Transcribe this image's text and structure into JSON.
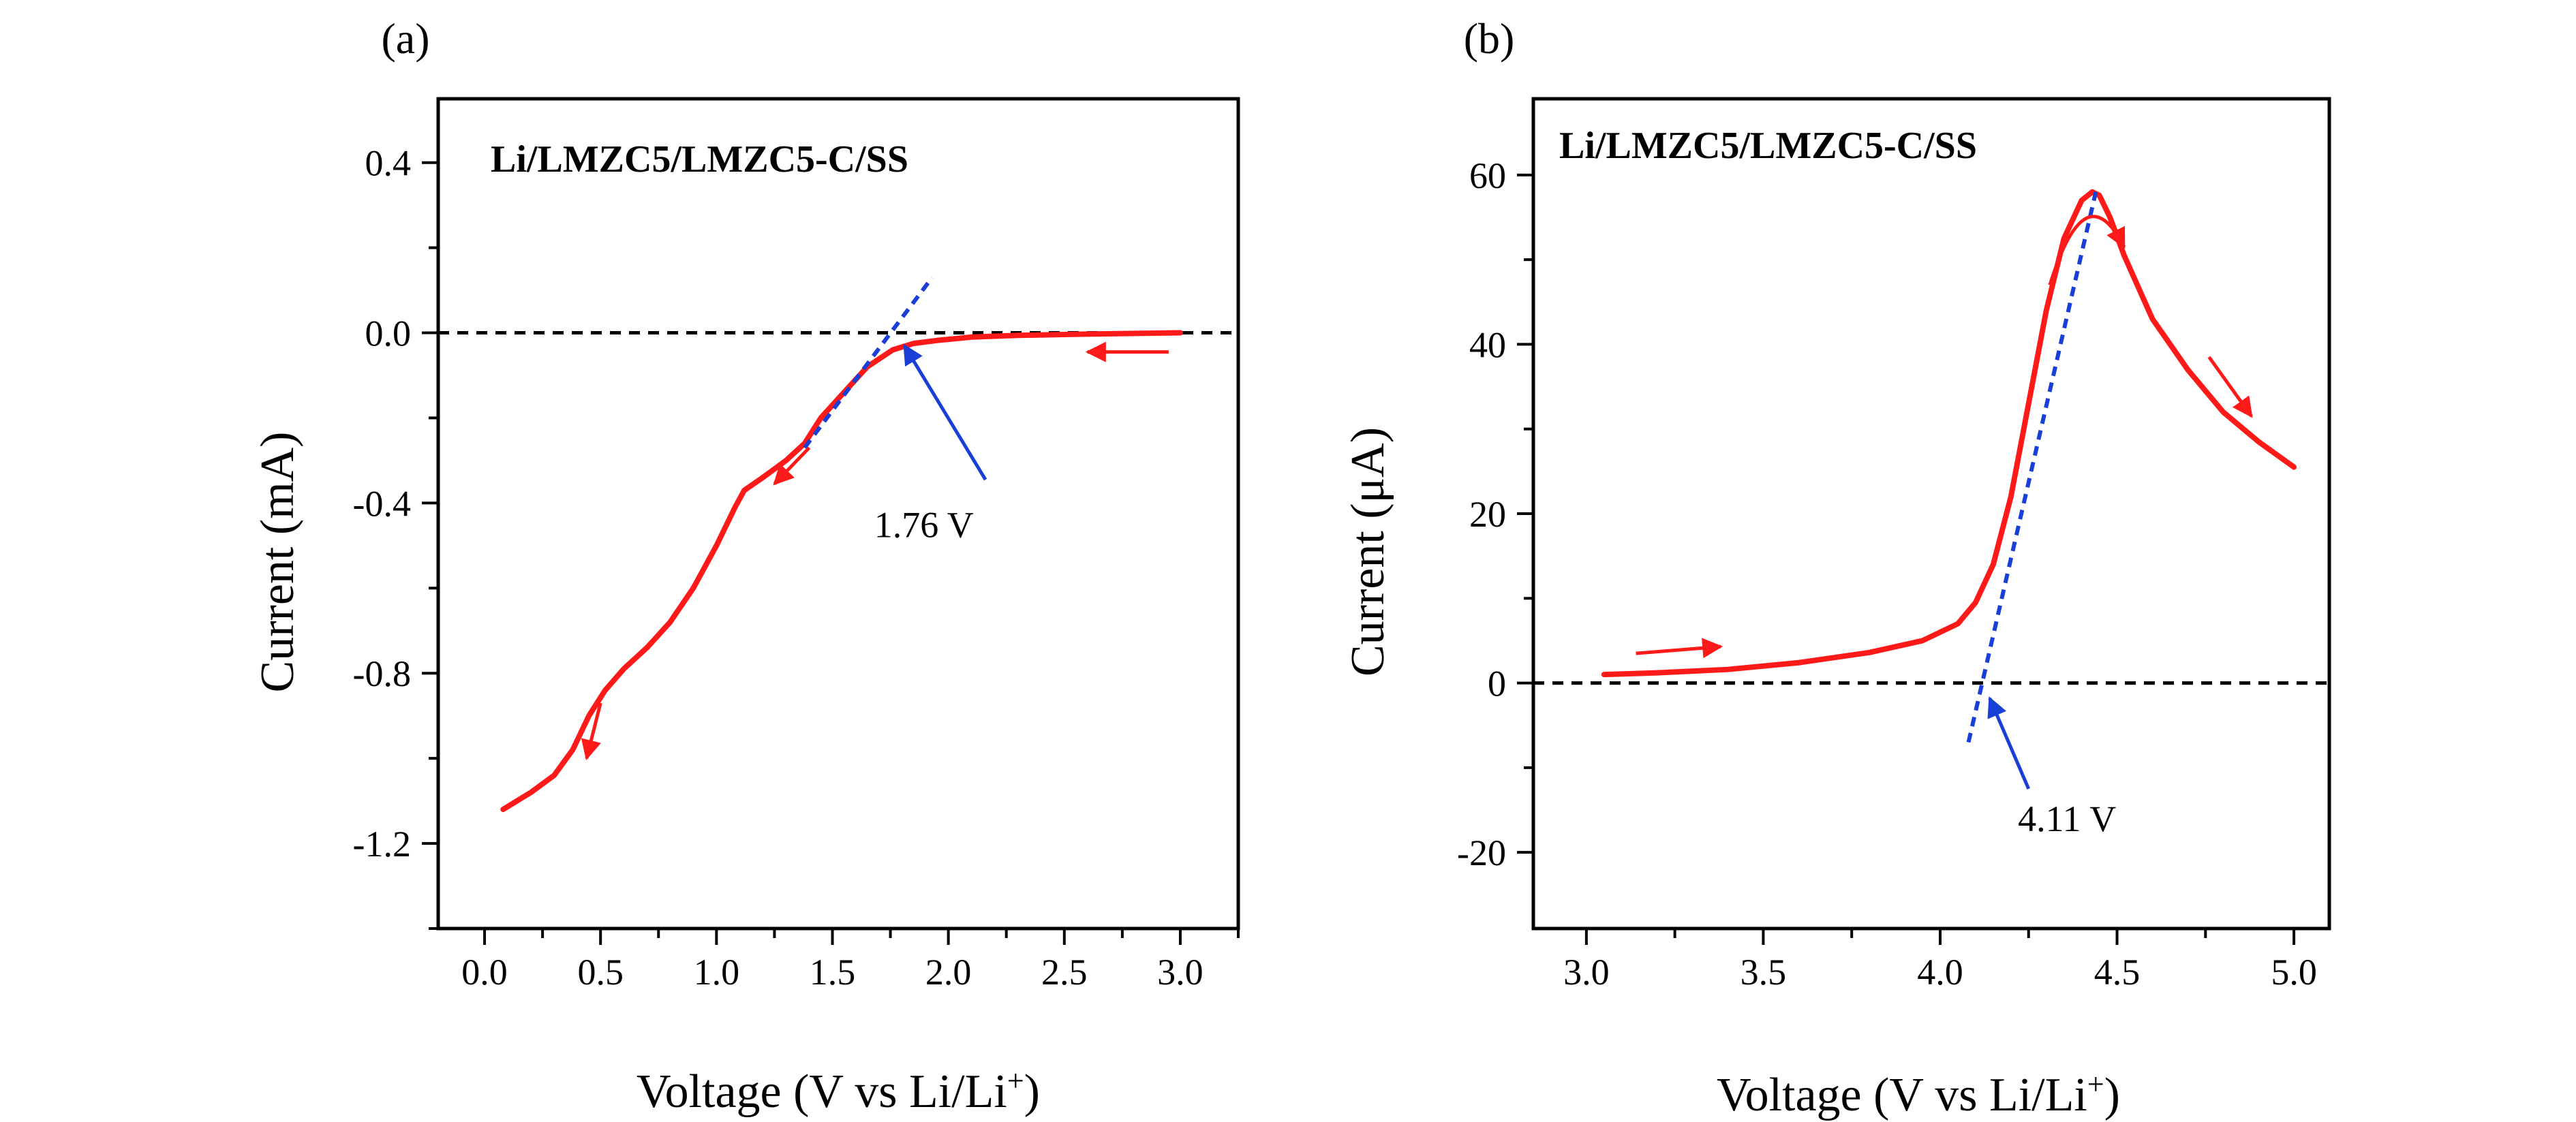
{
  "chart_data": [
    {
      "panel": "(a)",
      "type": "line",
      "title": "Li/LMZC5/LMZC5-C/SS",
      "xlabel": "Voltage (V vs Li/Li",
      "xlabel_sup": "+",
      "xlabel_end": ")",
      "ylabel": "Current (mA)",
      "xlim": [
        -0.2,
        3.25
      ],
      "ylim": [
        -1.4,
        0.55
      ],
      "xticks": [
        0.0,
        0.5,
        1.0,
        1.5,
        2.0,
        2.5,
        3.0
      ],
      "xtick_labels": [
        "0.0",
        "0.5",
        "1.0",
        "1.5",
        "2.0",
        "2.5",
        "3.0"
      ],
      "yticks": [
        0.4,
        0.0,
        -0.4,
        -0.8,
        -1.2
      ],
      "ytick_labels": [
        "0.4",
        "0.0",
        "-0.4",
        "-0.8",
        "-1.2"
      ],
      "series": [
        {
          "color": "#ff1a1a",
          "style": "solid",
          "x": [
            0.08,
            0.2,
            0.3,
            0.38,
            0.45,
            0.52,
            0.6,
            0.7,
            0.8,
            0.9,
            1.0,
            1.08,
            1.12,
            1.2,
            1.3,
            1.38,
            1.45,
            1.55,
            1.65,
            1.76,
            1.85,
            1.95,
            2.1,
            2.3,
            2.6,
            3.0
          ],
          "y": [
            -1.12,
            -1.08,
            -1.04,
            -0.98,
            -0.9,
            -0.84,
            -0.79,
            -0.74,
            -0.68,
            -0.6,
            -0.5,
            -0.41,
            -0.37,
            -0.34,
            -0.3,
            -0.26,
            -0.2,
            -0.14,
            -0.08,
            -0.04,
            -0.025,
            -0.018,
            -0.01,
            -0.006,
            -0.003,
            0.0
          ]
        }
      ],
      "baseline": {
        "y": 0.0,
        "x_range": [
          -0.2,
          3.25
        ],
        "color": "#000000",
        "style": "dashed"
      },
      "tangent": {
        "x": [
          1.38,
          1.93
        ],
        "y": [
          -0.27,
          0.13
        ],
        "color": "#1a3fd6",
        "style": "dashed"
      },
      "arrows": [
        {
          "from": [
            2.95,
            -0.045
          ],
          "to": [
            2.6,
            -0.045
          ],
          "color": "#ff1a1a"
        },
        {
          "from": [
            1.4,
            -0.27
          ],
          "to": [
            1.25,
            -0.355
          ],
          "color": "#ff1a1a"
        },
        {
          "from": [
            0.5,
            -0.87
          ],
          "to": [
            0.44,
            -1.0
          ],
          "color": "#ff1a1a"
        }
      ],
      "annotation": {
        "text": "1.76 V",
        "text_at": [
          1.68,
          -0.48
        ],
        "arrow_from": [
          2.16,
          -0.345
        ],
        "arrow_to": [
          1.81,
          -0.03
        ],
        "color": "#1a3fd6"
      }
    },
    {
      "panel": "(b)",
      "type": "line",
      "title": "Li/LMZC5/LMZC5-C/SS",
      "xlabel": "Voltage (V vs Li/Li",
      "xlabel_sup": "+",
      "xlabel_end": ")",
      "ylabel": "Current (μA)",
      "xlim": [
        2.85,
        5.1
      ],
      "ylim": [
        -29,
        69
      ],
      "xticks": [
        3.0,
        3.5,
        4.0,
        4.5,
        5.0
      ],
      "xtick_labels": [
        "3.0",
        "3.5",
        "4.0",
        "4.5",
        "5.0"
      ],
      "yticks": [
        60,
        40,
        20,
        0,
        -20
      ],
      "ytick_labels": [
        "60",
        "40",
        "20",
        "0",
        "-20"
      ],
      "series": [
        {
          "color": "#ff1a1a",
          "style": "solid",
          "x": [
            3.05,
            3.2,
            3.4,
            3.6,
            3.8,
            3.95,
            4.05,
            4.1,
            4.15,
            4.2,
            4.25,
            4.3,
            4.35,
            4.4,
            4.43,
            4.45,
            4.48,
            4.52,
            4.6,
            4.7,
            4.8,
            4.9,
            5.0
          ],
          "y": [
            1.0,
            1.2,
            1.6,
            2.4,
            3.6,
            5.0,
            7.0,
            9.5,
            14.0,
            22.0,
            33.0,
            44.0,
            52.5,
            57.0,
            58.0,
            57.6,
            55.0,
            50.5,
            43.0,
            37.0,
            32.0,
            28.5,
            25.5
          ]
        }
      ],
      "baseline": {
        "y": 0.0,
        "x_range": [
          2.85,
          5.1
        ],
        "color": "#000000",
        "style": "dashed"
      },
      "tangent": {
        "x": [
          4.08,
          4.44
        ],
        "y": [
          -7.0,
          58.0
        ],
        "color": "#1a3fd6",
        "style": "dashed"
      },
      "arrows": [
        {
          "from": [
            3.14,
            3.5
          ],
          "to": [
            3.38,
            4.3
          ],
          "color": "#ff1a1a"
        },
        {
          "from": [
            4.31,
            47.0
          ],
          "to": [
            4.5,
            58.0
          ],
          "color": "#ff1a1a",
          "type": "curved",
          "through": [
            4.41,
            60.5
          ],
          "end": [
            4.52,
            51.5
          ]
        },
        {
          "from": [
            4.76,
            38.5
          ],
          "to": [
            4.88,
            31.5
          ],
          "color": "#ff1a1a"
        }
      ],
      "annotation": {
        "text": "4.11 V",
        "text_at": [
          4.22,
          -17.5
        ],
        "arrow_from": [
          4.25,
          -12.5
        ],
        "arrow_to": [
          4.14,
          -1.8
        ],
        "color": "#1a3fd6"
      }
    }
  ],
  "labels": {
    "panel_a": "(a)",
    "panel_b": "(b)"
  }
}
